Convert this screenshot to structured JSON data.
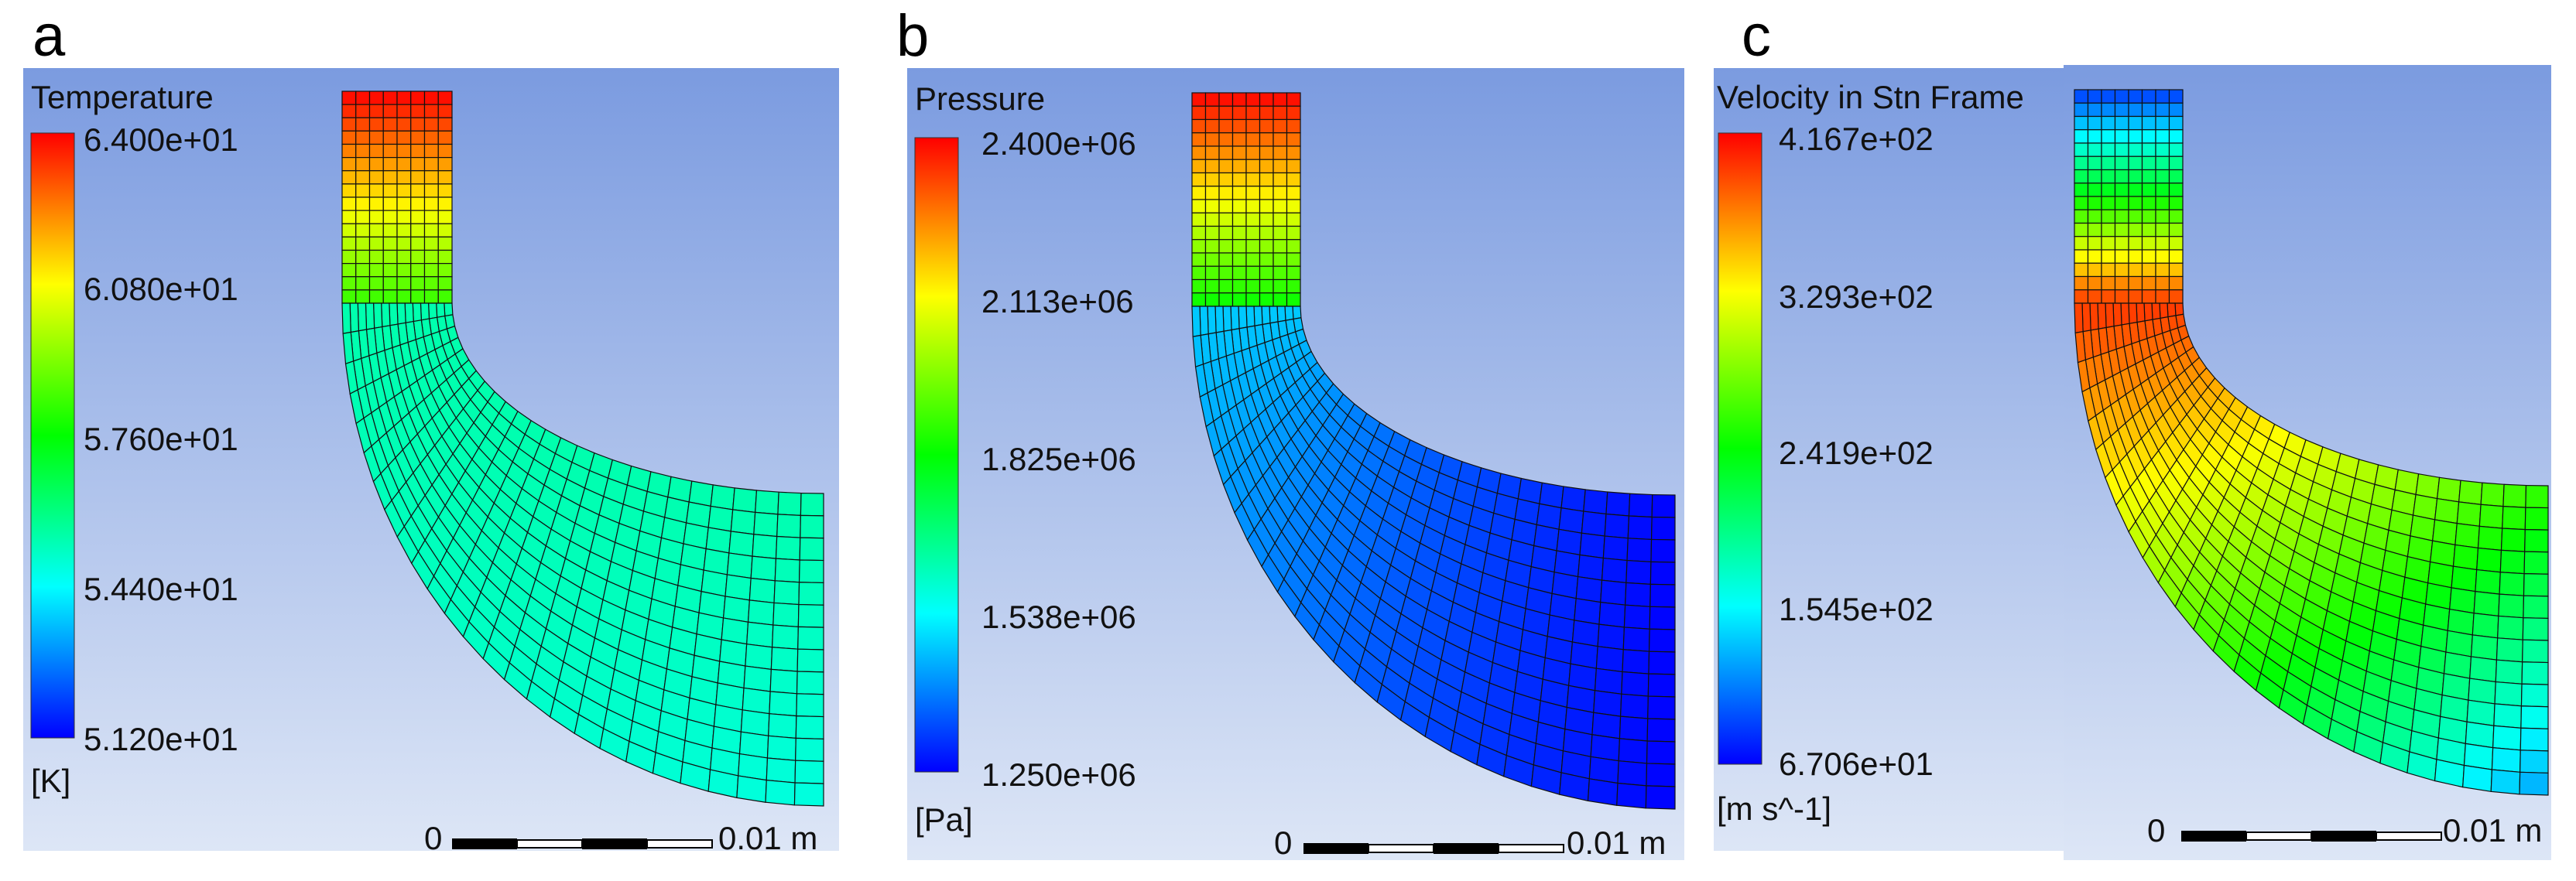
{
  "figure": {
    "panels": [
      {
        "id": "a",
        "letter": "a",
        "quantity": "Temperature",
        "unit": "[K]",
        "ticks": [
          "6.400e+01",
          "6.080e+01",
          "5.760e+01",
          "5.440e+01",
          "5.120e+01"
        ],
        "scale_zero": "0",
        "scale_label": "0.01 m",
        "field": "temperature"
      },
      {
        "id": "b",
        "letter": "b",
        "quantity": "Pressure",
        "unit": "[Pa]",
        "ticks": [
          "2.400e+06",
          "2.113e+06",
          "1.825e+06",
          "1.538e+06",
          "1.250e+06"
        ],
        "scale_zero": "0",
        "scale_label": "0.01 m",
        "field": "pressure"
      },
      {
        "id": "c",
        "letter": "c",
        "quantity": "Velocity in Stn Frame",
        "unit": "[m s^-1]",
        "ticks": [
          "4.167e+02",
          "3.293e+02",
          "2.419e+02",
          "1.545e+02",
          "6.706e+01"
        ],
        "scale_zero": "0",
        "scale_label": "0.01 m",
        "field": "velocity"
      }
    ],
    "colors": {
      "background_top": "#7b9be0",
      "background_bottom": "#dde6f6",
      "mesh_line": "#111111",
      "scale_bar": "#000000"
    }
  }
}
